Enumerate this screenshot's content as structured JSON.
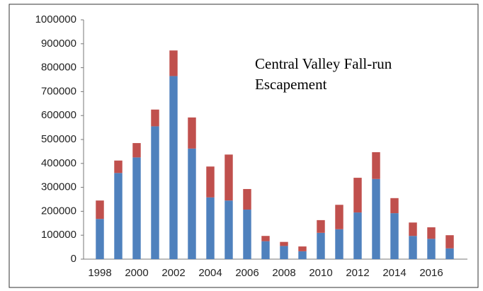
{
  "chart_data": {
    "type": "stacked-bar",
    "title": "Central Valley Fall-run Escapement",
    "categories": [
      "1998",
      null,
      "2000",
      null,
      "2002",
      null,
      "2004",
      null,
      "2006",
      null,
      "2008",
      null,
      "2010",
      null,
      "2012",
      null,
      "2014",
      null,
      "2016",
      null
    ],
    "series": [
      {
        "color": "#4f81bd",
        "values": [
          168000,
          360000,
          425000,
          555000,
          765000,
          462000,
          258000,
          245000,
          207000,
          75000,
          55000,
          33000,
          110000,
          125000,
          195000,
          335000,
          192000,
          97000,
          85000,
          45000
        ]
      },
      {
        "color": "#c0504d",
        "values": [
          77000,
          52000,
          60000,
          70000,
          107000,
          130000,
          129000,
          192000,
          86000,
          22000,
          17000,
          20000,
          53000,
          102000,
          145000,
          112000,
          63000,
          56000,
          48000,
          55000
        ]
      }
    ],
    "ylim": [
      0,
      1000000
    ],
    "yticks": [
      0,
      100000,
      200000,
      300000,
      400000,
      500000,
      600000,
      700000,
      800000,
      900000,
      1000000
    ],
    "grid": false
  }
}
